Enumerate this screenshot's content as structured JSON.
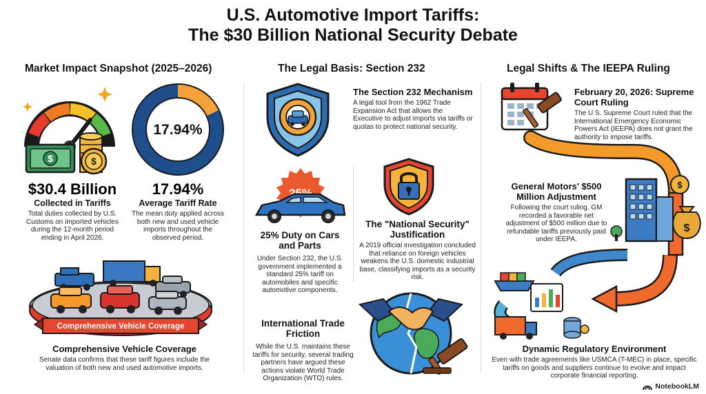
{
  "title": {
    "line1": "U.S. Automotive Import Tariffs:",
    "line2": "The $30 Billion National Security Debate"
  },
  "left": {
    "heading": "Market Impact Snapshot (2025–2026)",
    "donut_label": "17.94%",
    "donut_fraction": 0.1794,
    "stat1": {
      "value": "$30.4 Billion",
      "label": "Collected in Tariffs",
      "desc": "Total duties collected by U.S. Customs on imported vehicles during the 12-month period ending in April 2026."
    },
    "stat2": {
      "value": "17.94%",
      "label": "Average Tariff Rate",
      "desc": "The mean duty applied across both new and used vehicle imports throughout the observed period."
    },
    "banner": "Comprehensive Vehicle Coverage",
    "coverage": {
      "heading": "Comprehensive Vehicle Coverage",
      "desc": "Senate data confirms that these tariff figures include the valuation of both new and used automotive imports."
    }
  },
  "middle": {
    "heading": "The Legal Basis: Section 232",
    "badge": "25%",
    "s232": {
      "heading": "The Section 232 Mechanism",
      "desc": "A legal tool from the 1962 Trade Expansion Act that allows the Executive to adjust imports via tariffs or quotas to protect national security."
    },
    "duty": {
      "heading": "25% Duty on Cars and Parts",
      "desc": "Under Section 232, the U.S. government implemented a standard 25% tariff on automobiles and specific automotive components."
    },
    "security": {
      "heading": "The \"National Security\" Justification",
      "desc": "A 2019 official investigation concluded that reliance on foreign vehicles weakens the U.S. domestic industrial base, classifying imports as a security risk."
    },
    "friction": {
      "heading": "International Trade Friction",
      "desc": "While the U.S. maintains these tariffs for security, several trading partners have argued these actions violate World Trade Organization (WTO) rules."
    }
  },
  "right": {
    "heading": "Legal Shifts & The IEEPA Ruling",
    "ruling": {
      "heading": "February 20, 2026: Supreme Court Ruling",
      "desc": "The U.S. Supreme Court ruled that the International Emergency Economic Powers Act (IEEPA) does not grant the authority to impose tariffs."
    },
    "gm": {
      "heading": "General Motors' $500 Million Adjustment",
      "desc": "Following the court ruling, GM recorded a favorable net adjustment of $500 million due to refundable tariffs previously paid under IEEPA."
    },
    "dynamic": {
      "heading": "Dynamic Regulatory Environment",
      "desc": "Even with trade agreements like USMCA (T-MEC) in place, specific tariffs on goods and suppliers continue to evolve and impact corporate financial reporting."
    }
  },
  "brand": "NotebookLM"
}
